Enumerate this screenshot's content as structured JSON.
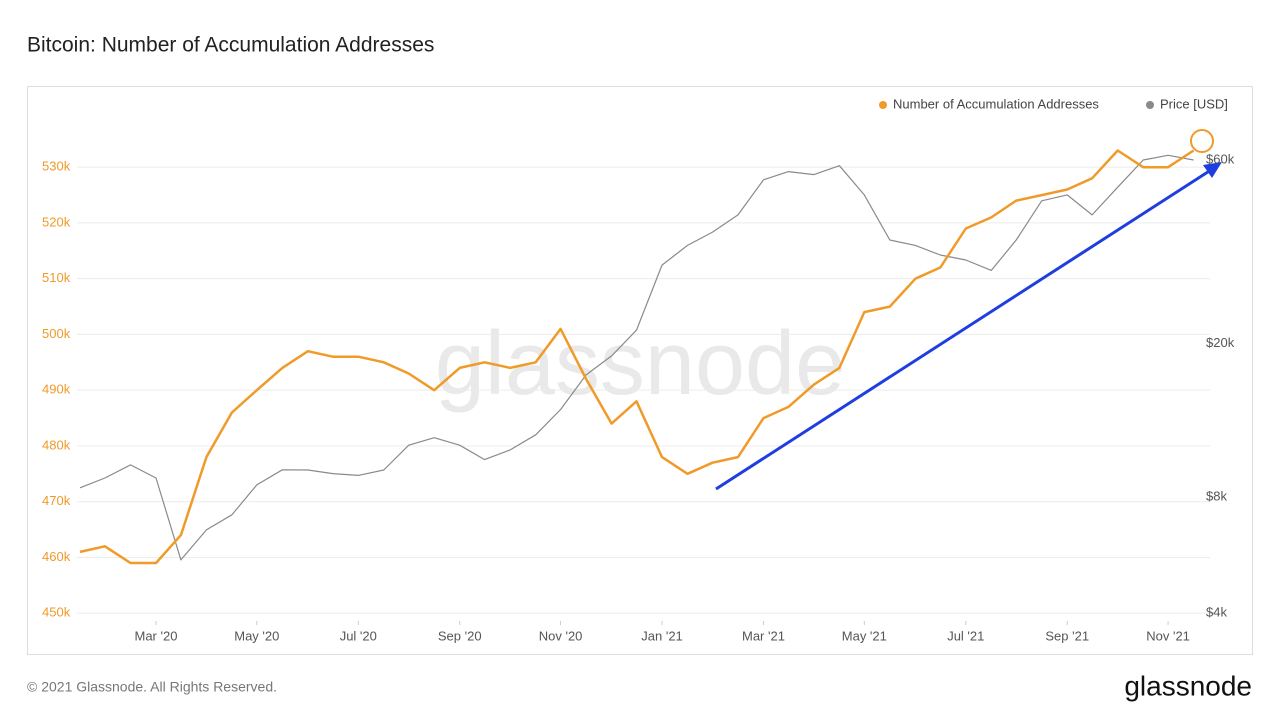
{
  "chart_data": {
    "type": "line",
    "title": "Bitcoin: Number of Accumulation Addresses",
    "watermark": "glassnode",
    "x": [
      2020.042,
      2020.083,
      2020.125,
      2020.167,
      2020.208,
      2020.25,
      2020.292,
      2020.333,
      2020.375,
      2020.417,
      2020.458,
      2020.5,
      2020.542,
      2020.583,
      2020.625,
      2020.667,
      2020.708,
      2020.75,
      2020.792,
      2020.833,
      2020.875,
      2020.917,
      2020.958,
      2021.0,
      2021.042,
      2021.083,
      2021.125,
      2021.167,
      2021.208,
      2021.25,
      2021.292,
      2021.333,
      2021.375,
      2021.417,
      2021.458,
      2021.5,
      2021.542,
      2021.583,
      2021.625,
      2021.667,
      2021.708,
      2021.75,
      2021.792,
      2021.833,
      2021.875
    ],
    "xlim": [
      2020.037,
      2021.902
    ],
    "xticks": [
      {
        "value": 2020.167,
        "label": "Mar '20"
      },
      {
        "value": 2020.333,
        "label": "May '20"
      },
      {
        "value": 2020.5,
        "label": "Jul '20"
      },
      {
        "value": 2020.667,
        "label": "Sep '20"
      },
      {
        "value": 2020.833,
        "label": "Nov '20"
      },
      {
        "value": 2021.0,
        "label": "Jan '21"
      },
      {
        "value": 2021.167,
        "label": "Mar '21"
      },
      {
        "value": 2021.333,
        "label": "May '21"
      },
      {
        "value": 2021.5,
        "label": "Jul '21"
      },
      {
        "value": 2021.667,
        "label": "Sep '21"
      },
      {
        "value": 2021.833,
        "label": "Nov '21"
      }
    ],
    "ylim": [
      448600,
      539000
    ],
    "yticks": [
      {
        "value": 450000,
        "label": "450k"
      },
      {
        "value": 460000,
        "label": "460k"
      },
      {
        "value": 470000,
        "label": "470k"
      },
      {
        "value": 480000,
        "label": "480k"
      },
      {
        "value": 490000,
        "label": "490k"
      },
      {
        "value": 500000,
        "label": "500k"
      },
      {
        "value": 510000,
        "label": "510k"
      },
      {
        "value": 520000,
        "label": "520k"
      },
      {
        "value": 530000,
        "label": "530k"
      }
    ],
    "y2lim": [
      3810,
      77600
    ],
    "y2_log": true,
    "y2ticks": [
      {
        "value": 4000,
        "label": "$4k"
      },
      {
        "value": 8000,
        "label": "$8k"
      },
      {
        "value": 20000,
        "label": "$20k"
      },
      {
        "value": 60000,
        "label": "$60k"
      }
    ],
    "grid": true,
    "legend": "top-right",
    "series": [
      {
        "name": "Number of Accumulation Addresses",
        "color": "#f09a29",
        "values": [
          461000,
          462000,
          459000,
          459000,
          464000,
          478000,
          486000,
          490000,
          494000,
          497000,
          496000,
          496000,
          495000,
          493000,
          490000,
          494000,
          495000,
          494000,
          495000,
          501000,
          492000,
          484000,
          488000,
          478000,
          475000,
          477000,
          478000,
          485000,
          487000,
          491000,
          494000,
          504000,
          505000,
          510000,
          512000,
          519000,
          521000,
          524000,
          525000,
          526000,
          528000,
          533000,
          530000,
          530000,
          533000
        ]
      },
      {
        "name": "Price [USD]",
        "color": "#8a8a8a",
        "axis": "y2",
        "values": [
          8450,
          8960,
          9690,
          8960,
          5490,
          6570,
          7190,
          8600,
          9410,
          9400,
          9200,
          9100,
          9400,
          10900,
          11400,
          10900,
          10000,
          10600,
          11600,
          13500,
          16600,
          18600,
          21700,
          32000,
          36000,
          39000,
          43200,
          53300,
          56000,
          55000,
          58000,
          48700,
          37200,
          36000,
          34000,
          33000,
          31000,
          37200,
          47000,
          48700,
          43200,
          51000,
          60000,
          61700,
          60000
        ]
      }
    ]
  },
  "footer": {
    "copyright": "© 2021 Glassnode. All Rights Reserved.",
    "brand": "glassnode"
  }
}
